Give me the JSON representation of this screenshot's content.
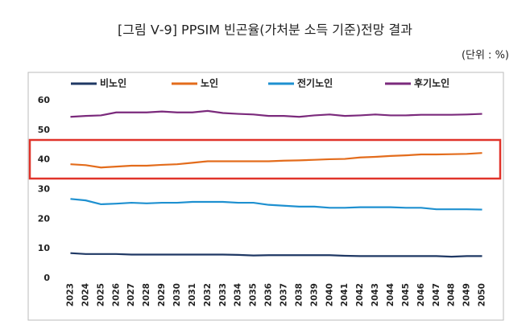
{
  "chart_data": {
    "type": "line",
    "title": "[그림 Ⅴ-9] PPSIM 빈곤율(가처분 소득 기준)전망 결과",
    "subtitle": "(단위 : %)",
    "categories": [
      "2023",
      "2024",
      "2025",
      "2026",
      "2027",
      "2028",
      "2029",
      "2030",
      "2031",
      "2032",
      "2033",
      "2034",
      "2035",
      "2036",
      "2037",
      "2038",
      "2039",
      "2040",
      "2041",
      "2042",
      "2043",
      "2044",
      "2045",
      "2046",
      "2047",
      "2048",
      "2049",
      "2050"
    ],
    "series": [
      {
        "name": "비노인",
        "color": "#1f3864",
        "values": [
          8.5,
          8.2,
          8.2,
          8.2,
          8.0,
          8.0,
          8.0,
          8.0,
          8.0,
          8.0,
          8.0,
          7.9,
          7.7,
          7.8,
          7.8,
          7.8,
          7.8,
          7.8,
          7.6,
          7.5,
          7.5,
          7.5,
          7.5,
          7.5,
          7.5,
          7.3,
          7.5,
          7.5
        ]
      },
      {
        "name": "노인",
        "color": "#e36c1c",
        "values": [
          38.5,
          38.2,
          37.4,
          37.7,
          38.0,
          38.0,
          38.3,
          38.5,
          39.0,
          39.5,
          39.5,
          39.5,
          39.5,
          39.5,
          39.7,
          39.8,
          40.0,
          40.2,
          40.3,
          40.8,
          41.0,
          41.3,
          41.5,
          41.8,
          41.8,
          41.9,
          42.0,
          42.3
        ]
      },
      {
        "name": "전기노인",
        "color": "#1e90d0",
        "values": [
          26.8,
          26.3,
          25.0,
          25.2,
          25.5,
          25.3,
          25.5,
          25.5,
          25.8,
          25.8,
          25.8,
          25.5,
          25.5,
          24.8,
          24.5,
          24.2,
          24.2,
          23.8,
          23.8,
          24.0,
          24.0,
          24.0,
          23.8,
          23.8,
          23.3,
          23.3,
          23.3,
          23.2
        ]
      },
      {
        "name": "후기노인",
        "color": "#7b2a7c",
        "values": [
          54.5,
          54.8,
          55.0,
          56.0,
          56.0,
          56.0,
          56.3,
          56.0,
          56.0,
          56.5,
          55.8,
          55.5,
          55.3,
          54.8,
          54.8,
          54.5,
          55.0,
          55.3,
          54.8,
          55.0,
          55.3,
          55.0,
          55.0,
          55.2,
          55.2,
          55.2,
          55.3,
          55.5
        ]
      }
    ],
    "ylim": [
      0,
      60
    ],
    "yticks": [
      0,
      10,
      20,
      30,
      40,
      50,
      60
    ],
    "grid": false,
    "legend": "top"
  }
}
